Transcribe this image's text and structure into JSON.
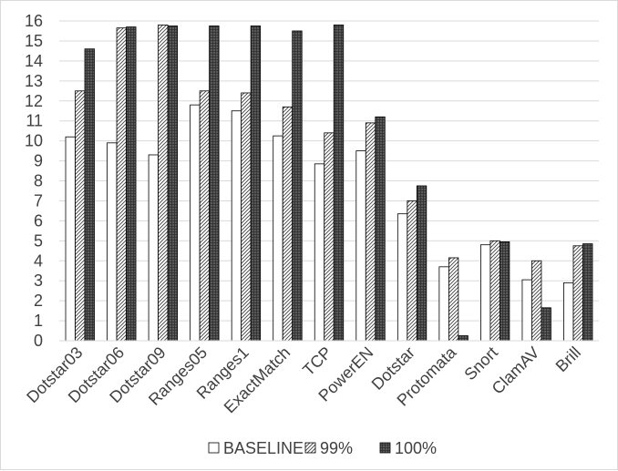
{
  "chart_data": {
    "type": "bar",
    "categories": [
      "Dotstar03",
      "Dotstar06",
      "Dotstar09",
      "Ranges05",
      "Ranges1",
      "ExactMatch",
      "TCP",
      "PowerEN",
      "Dotstar",
      "Protomata",
      "Snort",
      "ClamAV",
      "Brill"
    ],
    "series": [
      {
        "name": "BASELINE",
        "values": [
          10.2,
          9.9,
          9.3,
          11.8,
          11.5,
          10.25,
          8.85,
          9.5,
          6.35,
          3.7,
          4.8,
          3.05,
          2.9
        ],
        "fill": "white"
      },
      {
        "name": "99%",
        "values": [
          12.5,
          15.65,
          15.8,
          12.5,
          12.4,
          11.7,
          10.4,
          10.9,
          7.0,
          4.15,
          5.0,
          4.0,
          4.75
        ],
        "fill": "diagonal-hatch"
      },
      {
        "name": "100%",
        "values": [
          14.6,
          15.7,
          15.75,
          15.75,
          15.75,
          15.5,
          15.8,
          11.2,
          7.75,
          0.25,
          4.95,
          1.65,
          4.85
        ],
        "fill": "dark-crosshatch"
      }
    ],
    "ylim": [
      0,
      16
    ],
    "y_ticks": [
      0,
      1,
      2,
      3,
      4,
      5,
      6,
      7,
      8,
      9,
      10,
      11,
      12,
      13,
      14,
      15,
      16
    ],
    "grid": true,
    "legend_position": "bottom",
    "colors": {
      "bar_stroke": "#000000",
      "grid": "#d9d9d9",
      "axis_text": "#404040",
      "dark_fill": "#595959"
    }
  }
}
